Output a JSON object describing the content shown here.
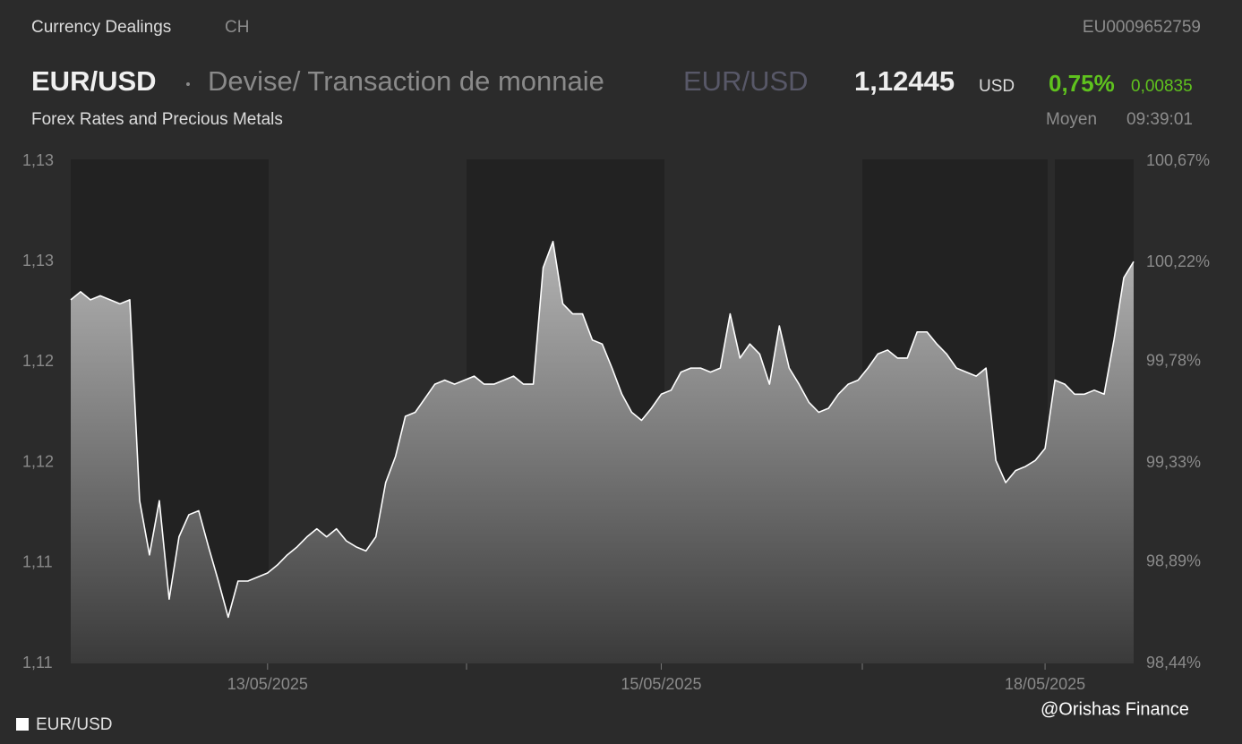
{
  "header": {
    "source": "Currency Dealings",
    "country": "CH",
    "isin": "EU0009652759",
    "symbol": "EUR/USD",
    "name": "Devise/ Transaction de monnaie",
    "symbol2": "EUR/USD",
    "price": "1,12445",
    "currency": "USD",
    "change_pct": "0,75%",
    "change_abs": "0,00835",
    "market": "Forex Rates and Precious Metals",
    "price_type": "Moyen",
    "time": "09:39:01",
    "watermark": "@Orishas Finance"
  },
  "chart_data": {
    "type": "area",
    "categories": [
      null,
      null,
      null,
      null,
      null,
      null,
      null,
      null,
      null,
      null,
      null,
      null,
      null,
      null,
      null,
      null,
      null,
      null,
      null,
      null,
      "13/05/2025",
      null,
      null,
      null,
      null,
      null,
      null,
      null,
      null,
      null,
      null,
      null,
      null,
      null,
      null,
      null,
      null,
      null,
      null,
      null,
      null,
      null,
      null,
      null,
      null,
      null,
      null,
      null,
      null,
      null,
      null,
      null,
      null,
      null,
      null,
      null,
      null,
      null,
      null,
      null,
      "15/05/2025",
      null,
      null,
      null,
      null,
      null,
      null,
      null,
      null,
      null,
      null,
      null,
      null,
      null,
      null,
      null,
      null,
      null,
      null,
      null,
      null,
      null,
      null,
      null,
      null,
      null,
      null,
      null,
      null,
      null,
      null,
      null,
      null,
      null,
      null,
      null,
      null,
      null,
      null,
      "18/05/2025",
      null,
      null,
      null,
      null,
      null,
      null,
      null,
      null,
      null
    ],
    "series": [
      {
        "name": "EUR/USD",
        "color": "#ffffff",
        "values": [
          1.1251,
          1.1255,
          1.1251,
          1.1253,
          1.1251,
          1.1249,
          1.1251,
          1.1151,
          1.1124,
          1.1151,
          1.1102,
          1.1133,
          1.1144,
          1.1146,
          1.1128,
          1.1111,
          1.1093,
          1.1111,
          1.1111,
          1.1113,
          1.1115,
          1.1119,
          1.1124,
          1.1128,
          1.1133,
          1.1137,
          1.1133,
          1.1137,
          1.1131,
          1.1128,
          1.1126,
          1.1133,
          1.116,
          1.1173,
          1.1193,
          1.1195,
          1.1202,
          1.1209,
          1.1211,
          1.1209,
          1.1211,
          1.1213,
          1.1209,
          1.1209,
          1.1211,
          1.1213,
          1.1209,
          1.1209,
          1.1267,
          1.128,
          1.1249,
          1.1244,
          1.1244,
          1.1231,
          1.1229,
          1.1217,
          1.1204,
          1.1195,
          1.1191,
          1.1197,
          1.1204,
          1.1206,
          1.1215,
          1.1217,
          1.1217,
          1.1215,
          1.1217,
          1.1244,
          1.1222,
          1.1229,
          1.1224,
          1.1209,
          1.1238,
          1.1217,
          1.1209,
          1.12,
          1.1195,
          1.1197,
          1.1204,
          1.1209,
          1.1211,
          1.1217,
          1.1224,
          1.1226,
          1.1222,
          1.1222,
          1.1235,
          1.1235,
          1.1229,
          1.1224,
          1.1217,
          1.1215,
          1.1213,
          1.1217,
          1.1171,
          1.116,
          1.1166,
          1.1168,
          1.1171,
          1.1177,
          1.1211,
          1.1209,
          1.1204,
          1.1204,
          1.1206,
          1.1204,
          1.1231,
          1.1262,
          1.127
        ]
      }
    ],
    "ylim": [
      1.107,
      1.132
    ],
    "yticks": [
      {
        "value": 1.107,
        "label": "1,11"
      },
      {
        "value": 1.112,
        "label": "1,11"
      },
      {
        "value": 1.117,
        "label": "1,12"
      },
      {
        "value": 1.122,
        "label": "1,12"
      },
      {
        "value": 1.127,
        "label": "1,13"
      },
      {
        "value": 1.132,
        "label": "1,13"
      }
    ],
    "y2lim": [
      98.44,
      100.67
    ],
    "y2ticks": [
      {
        "value": 98.44,
        "label": "98,44%"
      },
      {
        "value": 98.89,
        "label": "98,89%"
      },
      {
        "value": 99.33,
        "label": "99,33%"
      },
      {
        "value": 99.78,
        "label": "99,78%"
      },
      {
        "value": 100.22,
        "label": "100,22%"
      },
      {
        "value": 100.67,
        "label": "100,67%"
      }
    ],
    "legend": "bottom-left"
  }
}
